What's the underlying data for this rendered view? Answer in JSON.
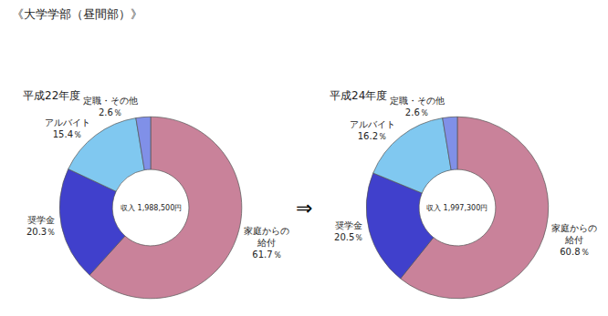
{
  "chart_data": [
    {
      "type": "donut",
      "title": "《大学学部（昼間部）》",
      "subtitle": "平成22年度",
      "annotations": [
        "収入 1,988,500円"
      ],
      "categories": [
        "家庭からの\n給付",
        "奨学金",
        "アルバイト",
        "定職・その他"
      ],
      "values": [
        61.7,
        20.3,
        15.4,
        2.6
      ],
      "value_labels": [
        "61.7％",
        "20.3％",
        "15.4％",
        "2.6％"
      ],
      "colors": [
        "#c9829a",
        "#4040cc",
        "#80c8f0",
        "#8090e8"
      ]
    },
    {
      "type": "donut",
      "subtitle": "平成24年度",
      "annotations": [
        "収入 1,997,300円",
        "⇒"
      ],
      "categories": [
        "家庭からの\n給付",
        "奨学金",
        "アルバイト",
        "定職・その他"
      ],
      "values": [
        60.8,
        20.5,
        16.2,
        2.6
      ],
      "value_labels": [
        "60.8％",
        "20.5％",
        "16.2％",
        "2.6％"
      ],
      "colors": [
        "#c9829a",
        "#4040cc",
        "#80c8f0",
        "#8090e8"
      ]
    }
  ]
}
